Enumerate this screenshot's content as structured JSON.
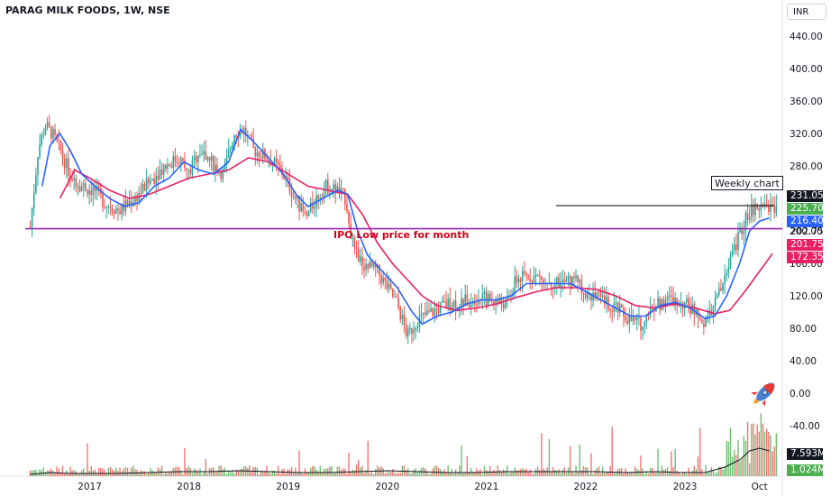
{
  "header": {
    "title": "PARAG MILK FOODS, 1W, NSE",
    "currency": "INR"
  },
  "annotations": {
    "weekly_chart": "Weekly chart",
    "ipo_label": "IPO Low price for month"
  },
  "price_tags": {
    "last": "231.05",
    "green": "225.70",
    "blue_ma": "216.40",
    "support": "202.75",
    "pink_a": "201.75",
    "pink_ma": "172.35",
    "volume": "7.593M",
    "volume_small": "1.024M"
  },
  "colors": {
    "up": "#26a69a",
    "down": "#ef5350",
    "fast_ma": "#2962ff",
    "slow_ma": "#e91e63",
    "support_line": "#9c27b0",
    "black_line": "#000000",
    "vol_up": "#4caf50",
    "vol_down": "#ef5350",
    "tag_black": "#131722",
    "tag_green": "#4caf50",
    "tag_blue": "#2962ff",
    "tag_pink": "#e91e63"
  },
  "chart_data": {
    "type": "candlestick",
    "title": "PARAG MILK FOODS, 1W, NSE",
    "y_ticks": [
      "440.00",
      "400.00",
      "360.00",
      "320.00",
      "280.00",
      "240.00",
      "200.00",
      "160.00",
      "120.00",
      "80.00",
      "40.00",
      "0.00",
      "-40.00"
    ],
    "ylim": [
      -100,
      460
    ],
    "x_ticks": [
      "2017",
      "2018",
      "2019",
      "2020",
      "2021",
      "2022",
      "2023",
      "Oct"
    ],
    "x_tick_positions": [
      2017.0,
      2018.0,
      2019.0,
      2020.0,
      2021.0,
      2022.0,
      2023.0,
      2023.75
    ],
    "xlim": [
      2016.35,
      2023.98
    ],
    "support_price": 202.75,
    "black_line": {
      "from": 2021.7,
      "to": 2023.9,
      "price": 231.05
    },
    "price_path": [
      [
        2016.4,
        205
      ],
      [
        2016.48,
        300
      ],
      [
        2016.55,
        330
      ],
      [
        2016.62,
        320
      ],
      [
        2016.7,
        300
      ],
      [
        2016.8,
        270
      ],
      [
        2016.92,
        255
      ],
      [
        2017.05,
        250
      ],
      [
        2017.15,
        235
      ],
      [
        2017.3,
        225
      ],
      [
        2017.45,
        240
      ],
      [
        2017.6,
        260
      ],
      [
        2017.75,
        280
      ],
      [
        2017.9,
        290
      ],
      [
        2018.0,
        270
      ],
      [
        2018.1,
        300
      ],
      [
        2018.22,
        285
      ],
      [
        2018.35,
        270
      ],
      [
        2018.45,
        320
      ],
      [
        2018.55,
        325
      ],
      [
        2018.65,
        300
      ],
      [
        2018.8,
        290
      ],
      [
        2018.95,
        270
      ],
      [
        2019.05,
        245
      ],
      [
        2019.18,
        215
      ],
      [
        2019.28,
        240
      ],
      [
        2019.38,
        255
      ],
      [
        2019.5,
        250
      ],
      [
        2019.58,
        240
      ],
      [
        2019.66,
        175
      ],
      [
        2019.75,
        160
      ],
      [
        2019.9,
        150
      ],
      [
        2020.0,
        130
      ],
      [
        2020.1,
        110
      ],
      [
        2020.2,
        70
      ],
      [
        2020.3,
        90
      ],
      [
        2020.45,
        100
      ],
      [
        2020.6,
        110
      ],
      [
        2020.75,
        112
      ],
      [
        2020.9,
        118
      ],
      [
        2021.05,
        115
      ],
      [
        2021.2,
        110
      ],
      [
        2021.3,
        140
      ],
      [
        2021.45,
        145
      ],
      [
        2021.6,
        140
      ],
      [
        2021.75,
        135
      ],
      [
        2021.9,
        140
      ],
      [
        2022.0,
        125
      ],
      [
        2022.15,
        115
      ],
      [
        2022.3,
        105
      ],
      [
        2022.45,
        90
      ],
      [
        2022.55,
        85
      ],
      [
        2022.7,
        110
      ],
      [
        2022.85,
        115
      ],
      [
        2023.0,
        110
      ],
      [
        2023.1,
        100
      ],
      [
        2023.2,
        85
      ],
      [
        2023.3,
        110
      ],
      [
        2023.4,
        140
      ],
      [
        2023.5,
        180
      ],
      [
        2023.58,
        205
      ],
      [
        2023.65,
        225
      ],
      [
        2023.75,
        228
      ],
      [
        2023.85,
        230
      ],
      [
        2023.92,
        231
      ]
    ],
    "fast_ma": [
      [
        2016.52,
        255
      ],
      [
        2016.6,
        305
      ],
      [
        2016.7,
        320
      ],
      [
        2016.8,
        300
      ],
      [
        2016.92,
        270
      ],
      [
        2017.05,
        255
      ],
      [
        2017.2,
        240
      ],
      [
        2017.35,
        230
      ],
      [
        2017.5,
        235
      ],
      [
        2017.65,
        255
      ],
      [
        2017.8,
        265
      ],
      [
        2017.95,
        285
      ],
      [
        2018.1,
        275
      ],
      [
        2018.25,
        270
      ],
      [
        2018.4,
        285
      ],
      [
        2018.52,
        325
      ],
      [
        2018.65,
        310
      ],
      [
        2018.8,
        290
      ],
      [
        2018.95,
        270
      ],
      [
        2019.08,
        245
      ],
      [
        2019.2,
        230
      ],
      [
        2019.35,
        240
      ],
      [
        2019.5,
        250
      ],
      [
        2019.6,
        245
      ],
      [
        2019.7,
        200
      ],
      [
        2019.8,
        170
      ],
      [
        2019.95,
        150
      ],
      [
        2020.1,
        130
      ],
      [
        2020.25,
        100
      ],
      [
        2020.35,
        85
      ],
      [
        2020.5,
        95
      ],
      [
        2020.65,
        100
      ],
      [
        2020.8,
        110
      ],
      [
        2020.95,
        115
      ],
      [
        2021.1,
        115
      ],
      [
        2021.25,
        120
      ],
      [
        2021.4,
        135
      ],
      [
        2021.55,
        135
      ],
      [
        2021.7,
        135
      ],
      [
        2021.85,
        135
      ],
      [
        2022.0,
        125
      ],
      [
        2022.15,
        115
      ],
      [
        2022.3,
        105
      ],
      [
        2022.45,
        95
      ],
      [
        2022.6,
        95
      ],
      [
        2022.75,
        108
      ],
      [
        2022.9,
        112
      ],
      [
        2023.05,
        105
      ],
      [
        2023.2,
        92
      ],
      [
        2023.3,
        95
      ],
      [
        2023.42,
        120
      ],
      [
        2023.55,
        160
      ],
      [
        2023.65,
        200
      ],
      [
        2023.75,
        212
      ],
      [
        2023.85,
        216
      ]
    ],
    "slow_ma": [
      [
        2016.7,
        240
      ],
      [
        2016.85,
        275
      ],
      [
        2017.0,
        265
      ],
      [
        2017.2,
        250
      ],
      [
        2017.4,
        240
      ],
      [
        2017.6,
        245
      ],
      [
        2017.8,
        255
      ],
      [
        2018.0,
        265
      ],
      [
        2018.2,
        270
      ],
      [
        2018.4,
        275
      ],
      [
        2018.6,
        290
      ],
      [
        2018.8,
        285
      ],
      [
        2019.0,
        270
      ],
      [
        2019.2,
        255
      ],
      [
        2019.4,
        250
      ],
      [
        2019.6,
        245
      ],
      [
        2019.75,
        220
      ],
      [
        2019.9,
        185
      ],
      [
        2020.05,
        160
      ],
      [
        2020.2,
        140
      ],
      [
        2020.35,
        120
      ],
      [
        2020.5,
        108
      ],
      [
        2020.7,
        102
      ],
      [
        2020.9,
        105
      ],
      [
        2021.1,
        110
      ],
      [
        2021.3,
        118
      ],
      [
        2021.5,
        125
      ],
      [
        2021.7,
        130
      ],
      [
        2021.9,
        130
      ],
      [
        2022.1,
        128
      ],
      [
        2022.3,
        120
      ],
      [
        2022.5,
        108
      ],
      [
        2022.7,
        105
      ],
      [
        2022.9,
        110
      ],
      [
        2023.1,
        105
      ],
      [
        2023.3,
        98
      ],
      [
        2023.45,
        102
      ],
      [
        2023.6,
        125
      ],
      [
        2023.75,
        150
      ],
      [
        2023.88,
        172
      ]
    ],
    "volume_avg": [
      [
        2016.4,
        2
      ],
      [
        2016.6,
        4
      ],
      [
        2016.8,
        3
      ],
      [
        2017.0,
        3
      ],
      [
        2017.3,
        3
      ],
      [
        2017.6,
        4
      ],
      [
        2017.9,
        5
      ],
      [
        2018.2,
        5
      ],
      [
        2018.5,
        6
      ],
      [
        2018.8,
        5
      ],
      [
        2019.1,
        4
      ],
      [
        2019.4,
        4
      ],
      [
        2019.7,
        5
      ],
      [
        2020.0,
        6
      ],
      [
        2020.3,
        5
      ],
      [
        2020.6,
        4
      ],
      [
        2020.9,
        4
      ],
      [
        2021.2,
        5
      ],
      [
        2021.5,
        5
      ],
      [
        2021.8,
        5
      ],
      [
        2022.1,
        5
      ],
      [
        2022.4,
        4
      ],
      [
        2022.7,
        5
      ],
      [
        2022.95,
        4
      ],
      [
        2023.2,
        4
      ],
      [
        2023.4,
        10
      ],
      [
        2023.55,
        18
      ],
      [
        2023.65,
        28
      ],
      [
        2023.75,
        31
      ],
      [
        2023.85,
        28
      ]
    ]
  }
}
